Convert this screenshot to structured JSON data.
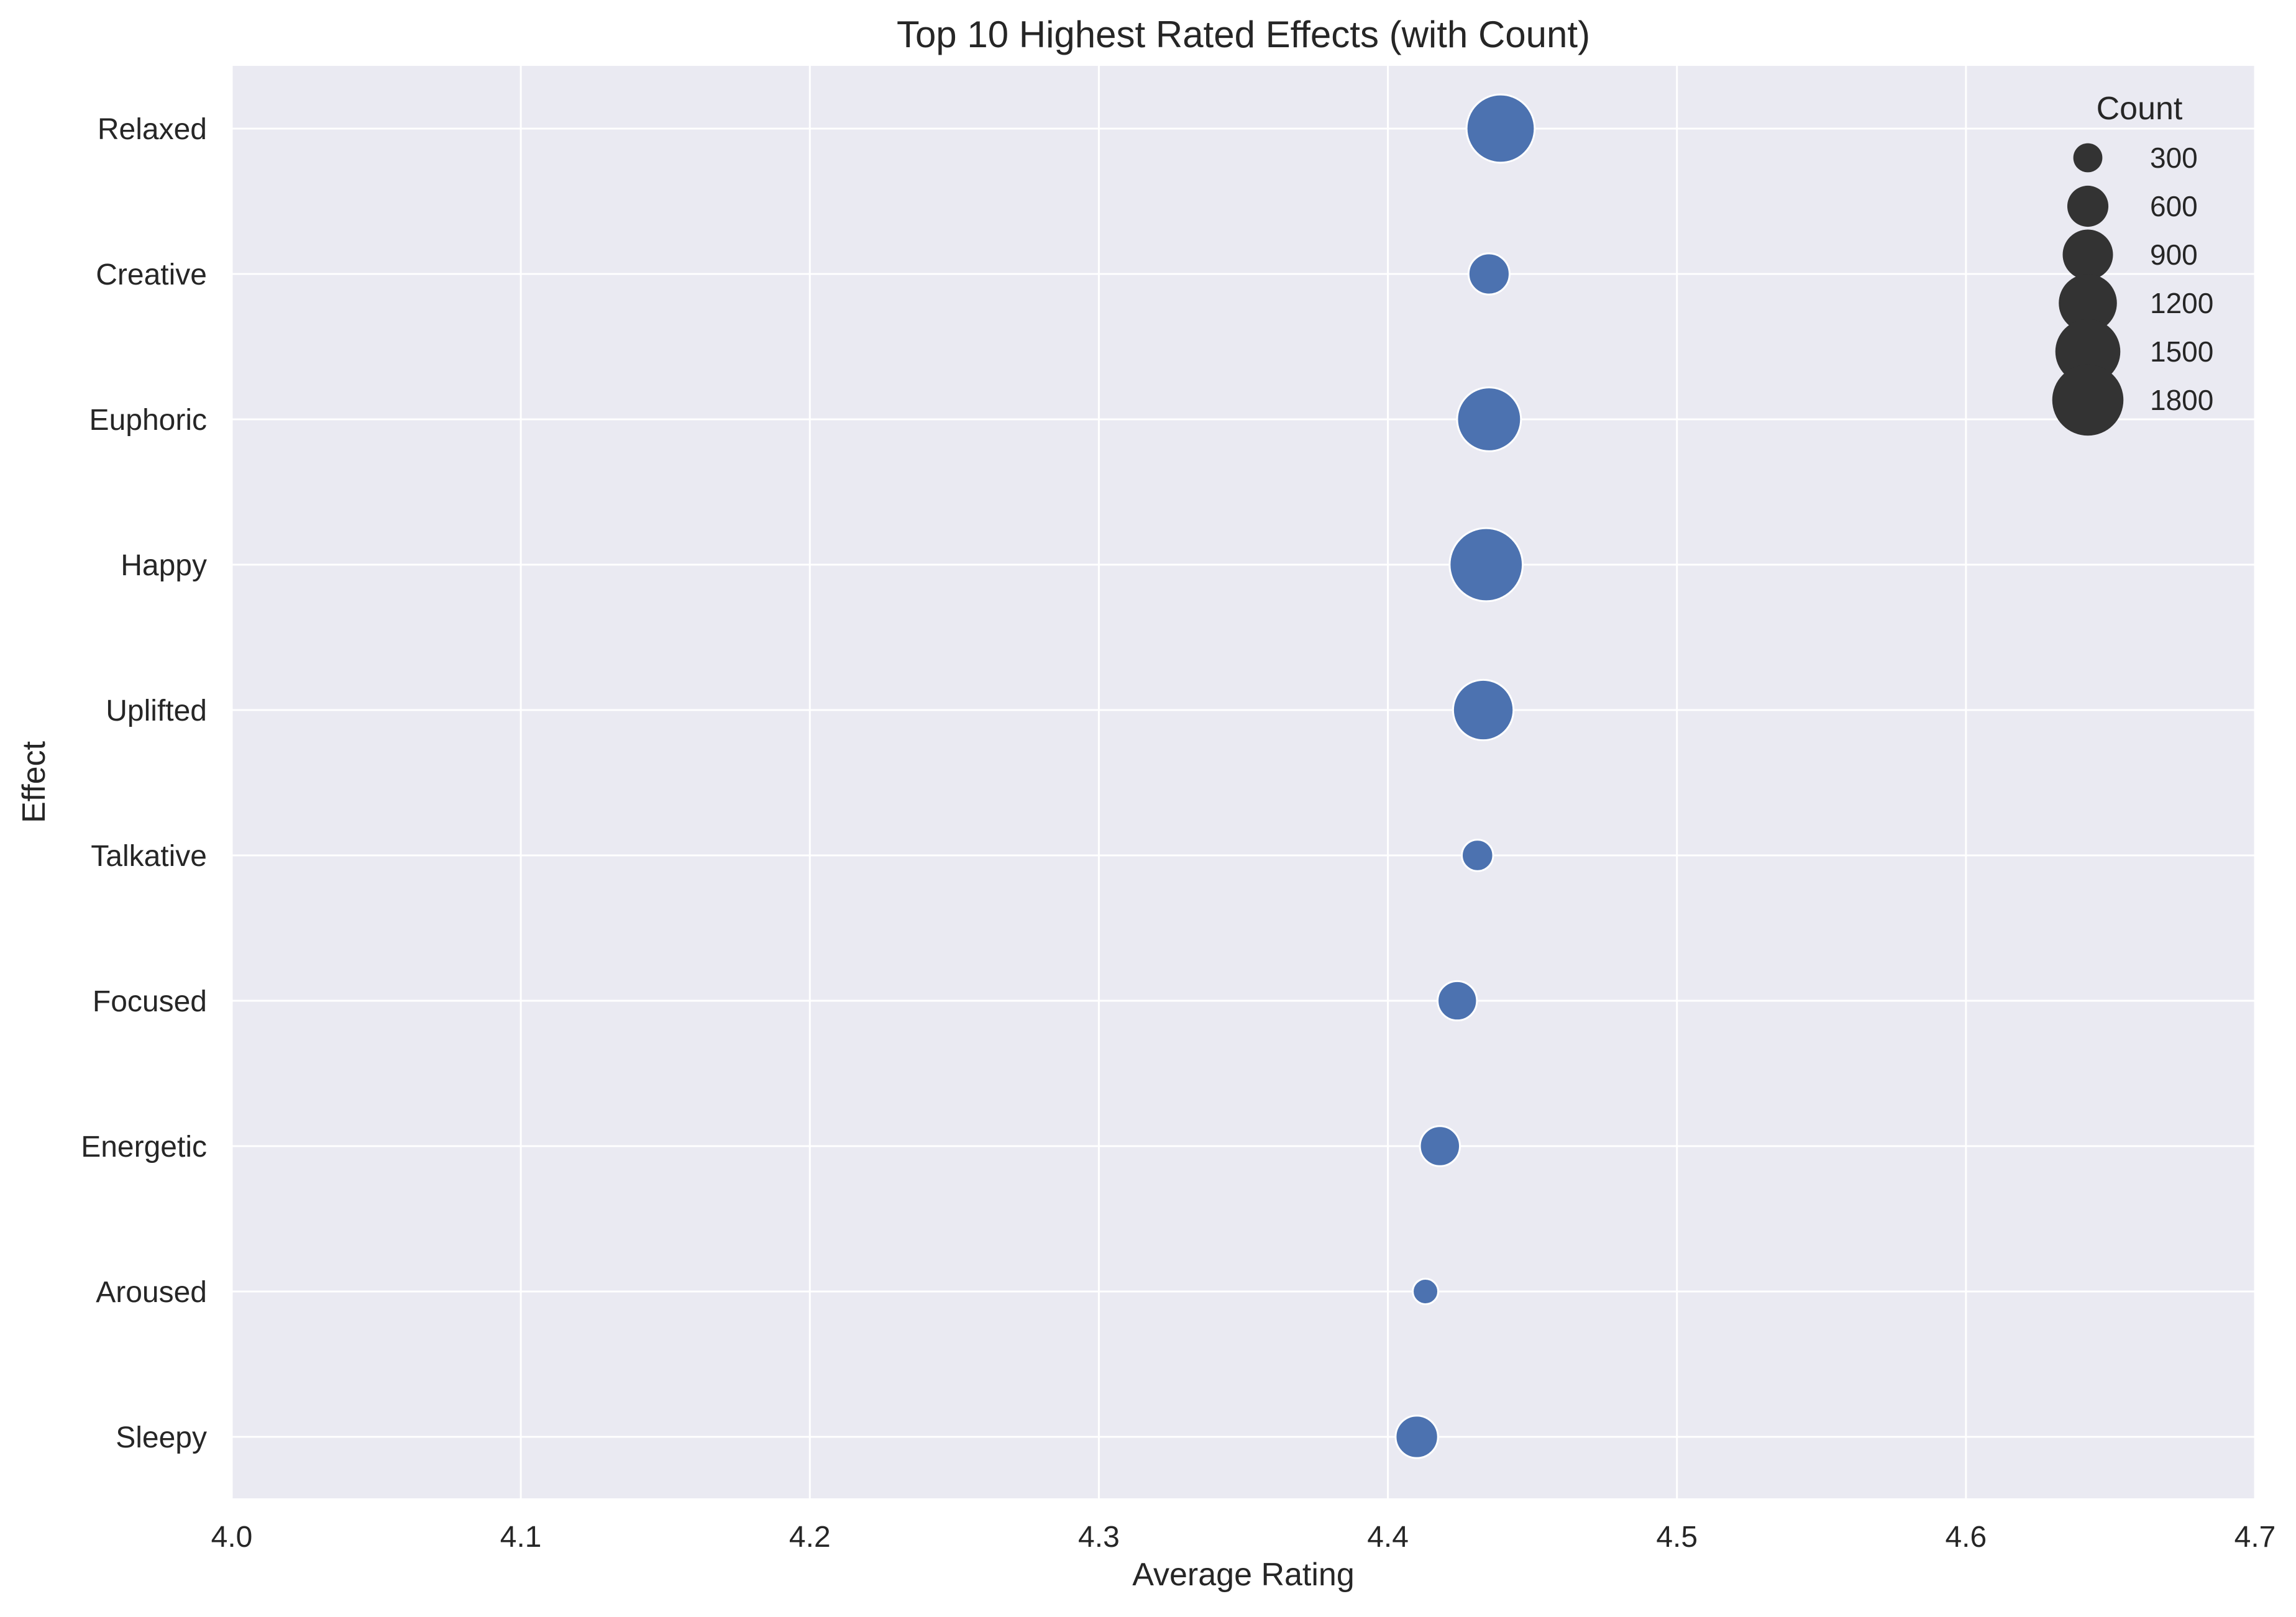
{
  "chart_data": {
    "type": "scatter",
    "title": "Top 10 Highest Rated Effects (with Count)",
    "xlabel": "Average Rating",
    "ylabel": "Effect",
    "xlim": [
      4.0,
      4.7
    ],
    "x_ticks": [
      "4.0",
      "4.1",
      "4.2",
      "4.3",
      "4.4",
      "4.5",
      "4.6",
      "4.7"
    ],
    "categories": [
      "Relaxed",
      "Creative",
      "Euphoric",
      "Happy",
      "Uplifted",
      "Talkative",
      "Focused",
      "Energetic",
      "Aroused",
      "Sleepy"
    ],
    "points": [
      {
        "effect": "Relaxed",
        "rating": 4.439,
        "count": 1650
      },
      {
        "effect": "Creative",
        "rating": 4.435,
        "count": 600
      },
      {
        "effect": "Euphoric",
        "rating": 4.435,
        "count": 1450
      },
      {
        "effect": "Happy",
        "rating": 4.434,
        "count": 1900
      },
      {
        "effect": "Uplifted",
        "rating": 4.433,
        "count": 1300
      },
      {
        "effect": "Talkative",
        "rating": 4.431,
        "count": 350
      },
      {
        "effect": "Focused",
        "rating": 4.424,
        "count": 550
      },
      {
        "effect": "Energetic",
        "rating": 4.418,
        "count": 570
      },
      {
        "effect": "Aroused",
        "rating": 4.413,
        "count": 230
      },
      {
        "effect": "Sleepy",
        "rating": 4.41,
        "count": 640
      }
    ],
    "legend": {
      "title": "Count",
      "placement": "top-right",
      "entries": [
        {
          "label": "300",
          "value": 300
        },
        {
          "label": "600",
          "value": 600
        },
        {
          "label": "900",
          "value": 900
        },
        {
          "label": "1200",
          "value": 1200
        },
        {
          "label": "1500",
          "value": 1500
        },
        {
          "label": "1800",
          "value": 1800
        }
      ]
    },
    "grid": true,
    "colors": {
      "marker": "#4c72b0",
      "plot_background": "#eaeaf2",
      "grid": "#ffffff",
      "legend_marker": "#333333"
    }
  }
}
